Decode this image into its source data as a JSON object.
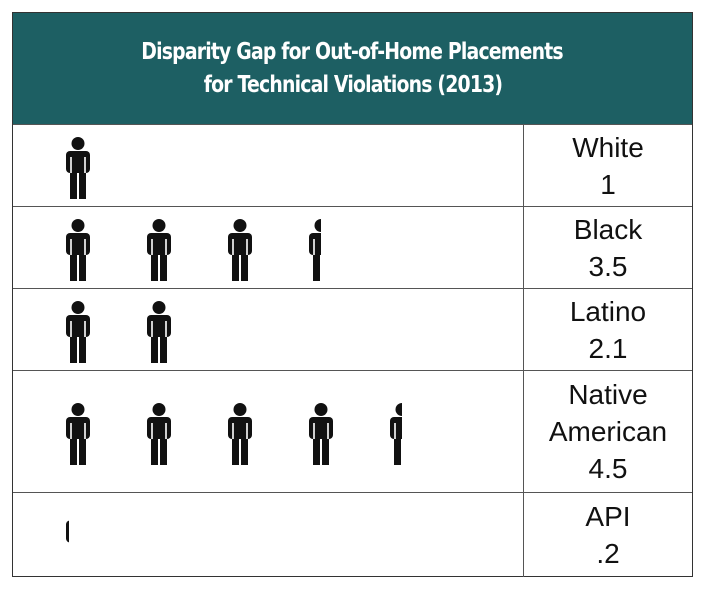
{
  "title_line1": "Disparity Gap for Out-of-Home Placements",
  "title_line2": "for Technical Violations (2013)",
  "colors": {
    "header_bg": "#1d5f63",
    "icon": "#111111"
  },
  "icon_name": "person-icon",
  "chart_data": {
    "type": "pictograph",
    "title": "Disparity Gap for Out-of-Home Placements for Technical Violations (2013)",
    "categories": [
      "White",
      "Black",
      "Latino",
      "Native American",
      "API"
    ],
    "values": [
      1,
      3.5,
      2.1,
      4.5,
      0.2
    ],
    "value_labels": [
      "1",
      "3.5",
      "2.1",
      "4.5",
      ".2"
    ]
  },
  "rows": [
    {
      "name_lines": [
        "White"
      ],
      "value_label": "1",
      "value": 1
    },
    {
      "name_lines": [
        "Black"
      ],
      "value_label": "3.5",
      "value": 3.5
    },
    {
      "name_lines": [
        "Latino"
      ],
      "value_label": "2.1",
      "value": 2.1
    },
    {
      "name_lines": [
        "Native",
        "American"
      ],
      "value_label": "4.5",
      "value": 4.5
    },
    {
      "name_lines": [
        "API"
      ],
      "value_label": ".2",
      "value": 0.2
    }
  ]
}
